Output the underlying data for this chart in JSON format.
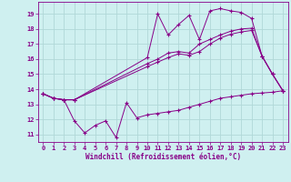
{
  "xlabel": "Windchill (Refroidissement éolien,°C)",
  "background_color": "#cff0f0",
  "grid_color": "#b0d8d8",
  "line_color": "#880088",
  "xlim": [
    -0.5,
    23.5
  ],
  "ylim": [
    10.5,
    19.8
  ],
  "xticks": [
    0,
    1,
    2,
    3,
    4,
    5,
    6,
    7,
    8,
    9,
    10,
    11,
    12,
    13,
    14,
    15,
    16,
    17,
    18,
    19,
    20,
    21,
    22,
    23
  ],
  "yticks": [
    11,
    12,
    13,
    14,
    15,
    16,
    17,
    18,
    19
  ],
  "line1_x": [
    0,
    1,
    2,
    3,
    4,
    5,
    6,
    7,
    8,
    9,
    10,
    11,
    12,
    13,
    14,
    15,
    16,
    17,
    18,
    19,
    20,
    21,
    22,
    23
  ],
  "line1_y": [
    13.7,
    13.4,
    13.3,
    11.9,
    11.1,
    11.6,
    11.9,
    10.8,
    13.1,
    12.1,
    12.3,
    12.4,
    12.5,
    12.6,
    12.8,
    13.0,
    13.2,
    13.4,
    13.5,
    13.6,
    13.7,
    13.75,
    13.8,
    13.9
  ],
  "line2_x": [
    0,
    1,
    2,
    3,
    10,
    11,
    12,
    13,
    14,
    15,
    16,
    17,
    18,
    19,
    20,
    21,
    22,
    23
  ],
  "line2_y": [
    13.7,
    13.4,
    13.3,
    13.3,
    16.1,
    19.0,
    17.6,
    18.3,
    18.9,
    17.3,
    19.2,
    19.35,
    19.2,
    19.1,
    18.7,
    16.2,
    15.0,
    13.9
  ],
  "line3_x": [
    0,
    1,
    2,
    3,
    10,
    11,
    12,
    13,
    14,
    15,
    16,
    17,
    18,
    19,
    20,
    21,
    22,
    23
  ],
  "line3_y": [
    13.7,
    13.4,
    13.3,
    13.3,
    15.5,
    15.8,
    16.1,
    16.35,
    16.25,
    16.5,
    17.0,
    17.4,
    17.65,
    17.8,
    17.9,
    16.2,
    15.0,
    13.9
  ],
  "line4_x": [
    0,
    1,
    2,
    3,
    10,
    11,
    12,
    13,
    14,
    15,
    16,
    17,
    18,
    19,
    20,
    21,
    22,
    23
  ],
  "line4_y": [
    13.7,
    13.4,
    13.3,
    13.3,
    15.7,
    16.0,
    16.4,
    16.5,
    16.4,
    17.0,
    17.3,
    17.6,
    17.85,
    18.0,
    18.05,
    16.2,
    15.0,
    13.9
  ],
  "marker": "+",
  "markersize": 3,
  "linewidth": 0.7
}
